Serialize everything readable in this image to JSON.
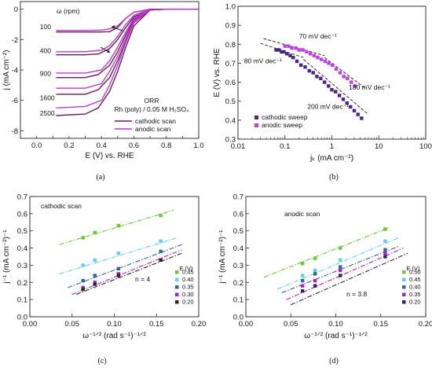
{
  "chart_data": [
    {
      "id": "a",
      "type": "line",
      "panel_label": "(a)",
      "xlabel": "E (V) vs. RHE",
      "ylabel": "j (mA cm⁻²)",
      "xlim": [
        -0.1,
        1.0
      ],
      "ylim": [
        -8.5,
        0.5
      ],
      "xticks": [
        0.0,
        0.1,
        0.2,
        0.3,
        0.4,
        0.5,
        0.6,
        0.7,
        0.8,
        0.9,
        1.0
      ],
      "xtick_labels": [
        "0.0",
        "0.2",
        "0.4",
        "0.6",
        "0.8",
        "1.0"
      ],
      "xtick_label_values": [
        0.0,
        0.2,
        0.4,
        0.6,
        0.8,
        1.0
      ],
      "yticks": [
        0,
        -2,
        -4,
        -6,
        -8
      ],
      "ytick_labels": [
        "0",
        "-2",
        "-4",
        "-6",
        "-8"
      ],
      "grid": false,
      "colors": {
        "cathodic": "#6a1b5e",
        "anodic": "#c03ad0"
      },
      "rotation_header": "ω (rpm)",
      "rotation_labels": [
        "100",
        "400",
        "900",
        "1600",
        "2500"
      ],
      "rotation_label_anchors": [
        {
          "x": 0.02,
          "y": -1.3
        },
        {
          "x": 0.02,
          "y": -2.9
        },
        {
          "x": 0.02,
          "y": -4.4
        },
        {
          "x": 0.02,
          "y": -6.0
        },
        {
          "x": 0.02,
          "y": -7.0
        }
      ],
      "annotation_lines": [
        "ORR",
        "Rh (poly) / 0.05 M H₂SO₄"
      ],
      "legend": {
        "position": "bottom-right",
        "entries": [
          "cathodic scan",
          "anodic scan"
        ]
      },
      "series": [
        {
          "name": "cathodic scan",
          "rpm": "100",
          "x": [
            0.12,
            0.3,
            0.4,
            0.45,
            0.5,
            0.55,
            0.6,
            0.7,
            0.8,
            1.0
          ],
          "y": [
            -1.5,
            -1.5,
            -1.5,
            -1.48,
            -1.2,
            -0.6,
            -0.2,
            0.0,
            0.0,
            0.0
          ]
        },
        {
          "name": "anodic scan",
          "rpm": "100",
          "x": [
            0.12,
            0.3,
            0.4,
            0.45,
            0.5,
            0.55,
            0.6,
            0.7,
            0.8,
            1.0
          ],
          "y": [
            -1.4,
            -1.4,
            -1.38,
            -1.3,
            -1.1,
            -0.6,
            -0.2,
            0.0,
            0.0,
            0.0
          ]
        },
        {
          "name": "cathodic scan",
          "rpm": "400",
          "x": [
            0.12,
            0.3,
            0.38,
            0.45,
            0.5,
            0.55,
            0.6,
            0.7,
            0.8,
            1.0
          ],
          "y": [
            -3.0,
            -3.0,
            -2.95,
            -2.6,
            -2.0,
            -1.2,
            -0.5,
            -0.05,
            0.0,
            0.0
          ]
        },
        {
          "name": "anodic scan",
          "rpm": "400",
          "x": [
            0.12,
            0.3,
            0.4,
            0.45,
            0.5,
            0.55,
            0.6,
            0.7,
            0.8,
            1.0
          ],
          "y": [
            -2.8,
            -2.8,
            -2.7,
            -2.4,
            -1.8,
            -1.0,
            -0.4,
            0.0,
            0.0,
            0.0
          ]
        },
        {
          "name": "cathodic scan",
          "rpm": "900",
          "x": [
            0.12,
            0.3,
            0.38,
            0.45,
            0.5,
            0.55,
            0.6,
            0.7,
            0.8,
            1.0
          ],
          "y": [
            -4.5,
            -4.5,
            -4.3,
            -3.7,
            -2.8,
            -1.7,
            -0.7,
            -0.05,
            0.0,
            0.0
          ]
        },
        {
          "name": "anodic scan",
          "rpm": "900",
          "x": [
            0.12,
            0.3,
            0.4,
            0.45,
            0.5,
            0.55,
            0.6,
            0.7,
            0.8,
            1.0
          ],
          "y": [
            -4.2,
            -4.2,
            -4.0,
            -3.4,
            -2.5,
            -1.5,
            -0.6,
            0.0,
            0.0,
            0.0
          ]
        },
        {
          "name": "cathodic scan",
          "rpm": "1600",
          "x": [
            0.12,
            0.3,
            0.38,
            0.45,
            0.5,
            0.55,
            0.6,
            0.7,
            0.8,
            1.0
          ],
          "y": [
            -5.6,
            -5.6,
            -5.3,
            -4.5,
            -3.4,
            -2.1,
            -0.9,
            -0.05,
            0.0,
            0.0
          ]
        },
        {
          "name": "anodic scan",
          "rpm": "1600",
          "x": [
            0.12,
            0.3,
            0.4,
            0.45,
            0.5,
            0.55,
            0.6,
            0.7,
            0.8,
            1.0
          ],
          "y": [
            -5.2,
            -5.2,
            -4.9,
            -4.1,
            -3.1,
            -1.9,
            -0.8,
            0.0,
            0.0,
            0.0
          ]
        },
        {
          "name": "cathodic scan",
          "rpm": "2500",
          "x": [
            0.12,
            0.3,
            0.38,
            0.45,
            0.5,
            0.55,
            0.6,
            0.7,
            0.8,
            1.0
          ],
          "y": [
            -7.0,
            -6.9,
            -6.5,
            -5.4,
            -4.1,
            -2.5,
            -1.1,
            -0.05,
            0.0,
            0.0
          ]
        },
        {
          "name": "anodic scan",
          "rpm": "2500",
          "x": [
            0.12,
            0.3,
            0.4,
            0.45,
            0.5,
            0.55,
            0.6,
            0.7,
            0.8,
            1.0
          ],
          "y": [
            -6.5,
            -6.4,
            -6.0,
            -5.0,
            -3.7,
            -2.2,
            -0.9,
            0.0,
            0.0,
            0.0
          ]
        }
      ]
    },
    {
      "id": "b",
      "type": "scatter",
      "panel_label": "(b)",
      "xscale": "log",
      "xlabel": "jₖ (mA cm⁻²)",
      "ylabel": "E (V) vs. RHE",
      "xlim": [
        0.01,
        100
      ],
      "ylim": [
        0.3,
        1.0
      ],
      "xticks": [
        0.01,
        0.1,
        1,
        10,
        100
      ],
      "xtick_labels": [
        "0.01",
        "0.1",
        "1",
        "10",
        "100"
      ],
      "yticks": [
        0.3,
        0.4,
        0.5,
        0.6,
        0.7,
        0.8,
        0.9,
        1.0
      ],
      "ytick_labels": [
        "0.3",
        "0.4",
        "0.5",
        "0.6",
        "0.7",
        "0.8",
        "0.9",
        "1.0"
      ],
      "grid": false,
      "legend": {
        "position": "bottom-left",
        "entries": [
          "cathodic sweep",
          "anodic sweep"
        ]
      },
      "slope_annotations": [
        "80 mV dec⁻¹",
        "70 mV dec⁻¹",
        "180 mV dec⁻¹",
        "200 mV dec⁻¹"
      ],
      "slope_annotation_anchors": [
        {
          "x": 0.0135,
          "y": 0.7
        },
        {
          "x": 0.2,
          "y": 0.83
        },
        {
          "x": 2.3,
          "y": 0.56
        },
        {
          "x": 0.3,
          "y": 0.46
        }
      ],
      "series": [
        {
          "name": "cathodic sweep",
          "color": "#4b2485",
          "x": [
            0.065,
            0.075,
            0.085,
            0.095,
            0.11,
            0.13,
            0.15,
            0.18,
            0.22,
            0.27,
            0.33,
            0.4,
            0.48,
            0.58,
            0.7,
            0.85,
            1.0,
            1.2,
            1.45,
            1.75,
            2.1,
            2.5,
            3.0,
            3.6,
            4.3
          ],
          "y": [
            0.77,
            0.77,
            0.76,
            0.76,
            0.75,
            0.74,
            0.73,
            0.71,
            0.69,
            0.68,
            0.66,
            0.65,
            0.63,
            0.62,
            0.6,
            0.58,
            0.56,
            0.55,
            0.53,
            0.51,
            0.49,
            0.47,
            0.45,
            0.43,
            0.41
          ]
        },
        {
          "name": "anodic sweep",
          "color": "#c040e0",
          "x": [
            0.1,
            0.12,
            0.14,
            0.17,
            0.2,
            0.24,
            0.29,
            0.35,
            0.42,
            0.5,
            0.6,
            0.72,
            0.86,
            1.03,
            1.24,
            1.5,
            1.8,
            2.15,
            2.6,
            3.1
          ],
          "y": [
            0.79,
            0.79,
            0.78,
            0.78,
            0.77,
            0.77,
            0.76,
            0.75,
            0.74,
            0.73,
            0.72,
            0.71,
            0.7,
            0.69,
            0.67,
            0.65,
            0.63,
            0.62,
            0.6,
            0.58
          ]
        }
      ],
      "fit_lines": [
        {
          "x": [
            0.03,
            0.25
          ],
          "y": [
            0.805,
            0.73
          ]
        },
        {
          "x": [
            0.25,
            6.0
          ],
          "y": [
            0.72,
            0.43
          ]
        },
        {
          "x": [
            0.035,
            0.7
          ],
          "y": [
            0.83,
            0.74
          ]
        },
        {
          "x": [
            0.7,
            5.0
          ],
          "y": [
            0.73,
            0.57
          ]
        }
      ]
    },
    {
      "id": "c",
      "type": "scatter",
      "panel_label": "(c)",
      "xlabel": "ω⁻¹ᐟ² (rad s⁻¹)⁻¹ᐟ²",
      "ylabel": "j⁻¹ (mA cm⁻²)⁻¹",
      "xlim": [
        0.0,
        0.2
      ],
      "ylim": [
        0.0,
        0.7
      ],
      "xticks": [
        0.0,
        0.05,
        0.1,
        0.15,
        0.2
      ],
      "xtick_labels": [
        "0.00",
        "0.05",
        "0.10",
        "0.15",
        "0.20"
      ],
      "yticks": [
        0.0,
        0.1,
        0.2,
        0.3,
        0.4,
        0.5,
        0.6,
        0.7
      ],
      "ytick_labels": [
        "0.0",
        "0.1",
        "0.2",
        "0.3",
        "0.4",
        "0.5",
        "0.6",
        "0.7"
      ],
      "grid": false,
      "corner_text": "cathodic scan",
      "n_label": "n = 4",
      "legend_title": "E (V)",
      "legend_position": "bottom-right",
      "x_values": [
        0.063,
        0.077,
        0.105,
        0.155
      ],
      "series": [
        {
          "name": "0.45",
          "color": "#66cc33",
          "values": [
            0.46,
            0.49,
            0.53,
            0.59
          ],
          "fit": {
            "x": [
              0.035,
              0.17
            ],
            "y": [
              0.42,
              0.62
            ]
          }
        },
        {
          "name": "0.40",
          "color": "#66ccee",
          "values": [
            0.3,
            0.33,
            0.37,
            0.44
          ],
          "fit": {
            "x": [
              0.035,
              0.175
            ],
            "y": [
              0.25,
              0.46
            ]
          }
        },
        {
          "name": "0.35",
          "color": "#336699",
          "values": [
            0.21,
            0.24,
            0.28,
            0.38
          ],
          "fit": {
            "x": [
              0.045,
              0.18
            ],
            "y": [
              0.17,
              0.42
            ]
          }
        },
        {
          "name": "0.30",
          "color": "#aa22cc",
          "values": [
            0.17,
            0.2,
            0.25,
            0.33
          ],
          "fit": {
            "x": [
              0.05,
              0.18
            ],
            "y": [
              0.13,
              0.39
            ]
          }
        },
        {
          "name": "0.20",
          "color": "#332222",
          "values": [
            0.16,
            0.19,
            0.24,
            0.33
          ],
          "fit": {
            "x": [
              0.055,
              0.18
            ],
            "y": [
              0.13,
              0.37
            ]
          }
        }
      ]
    },
    {
      "id": "d",
      "type": "scatter",
      "panel_label": "(d)",
      "xlabel": "ω⁻¹ᐟ² (rad s⁻¹)⁻¹ᐟ²",
      "ylabel": "j⁻¹ (mA cm⁻²)⁻¹",
      "xlim": [
        0.0,
        0.2
      ],
      "ylim": [
        0.0,
        0.7
      ],
      "xticks": [
        0.0,
        0.05,
        0.1,
        0.15,
        0.2
      ],
      "xtick_labels": [
        "0.00",
        "0.05",
        "0.10",
        "0.15",
        "0.20"
      ],
      "yticks": [
        0.0,
        0.1,
        0.2,
        0.3,
        0.4,
        0.5,
        0.6,
        0.7
      ],
      "ytick_labels": [
        "0.0",
        "0.1",
        "0.2",
        "0.3",
        "0.4",
        "0.5",
        "0.6",
        "0.7"
      ],
      "grid": false,
      "corner_text": "anodic scan",
      "n_label": "n = 3.8",
      "legend_title": "E (V)",
      "legend_position": "bottom-right",
      "x_values": [
        0.063,
        0.077,
        0.105,
        0.155
      ],
      "series": [
        {
          "name": "0.50",
          "color": "#66cc33",
          "values": [
            0.31,
            0.34,
            0.4,
            0.51
          ],
          "fit": {
            "x": [
              0.02,
              0.16
            ],
            "y": [
              0.23,
              0.52
            ]
          }
        },
        {
          "name": "0.45",
          "color": "#66ccee",
          "values": [
            0.24,
            0.27,
            0.33,
            0.44
          ],
          "fit": {
            "x": [
              0.035,
              0.17
            ],
            "y": [
              0.16,
              0.46
            ]
          }
        },
        {
          "name": "0.40",
          "color": "#336699",
          "values": [
            0.21,
            0.25,
            0.29,
            0.39
          ],
          "fit": {
            "x": [
              0.04,
              0.17
            ],
            "y": [
              0.14,
              0.41
            ]
          }
        },
        {
          "name": "0.35",
          "color": "#aa22cc",
          "values": [
            0.18,
            0.21,
            0.27,
            0.37
          ],
          "fit": {
            "x": [
              0.045,
              0.175
            ],
            "y": [
              0.1,
              0.4
            ]
          }
        },
        {
          "name": "0.20",
          "color": "#332266",
          "values": [
            0.15,
            0.18,
            0.24,
            0.35
          ],
          "fit": {
            "x": [
              0.05,
              0.18
            ],
            "y": [
              0.07,
              0.37
            ]
          }
        }
      ]
    }
  ]
}
